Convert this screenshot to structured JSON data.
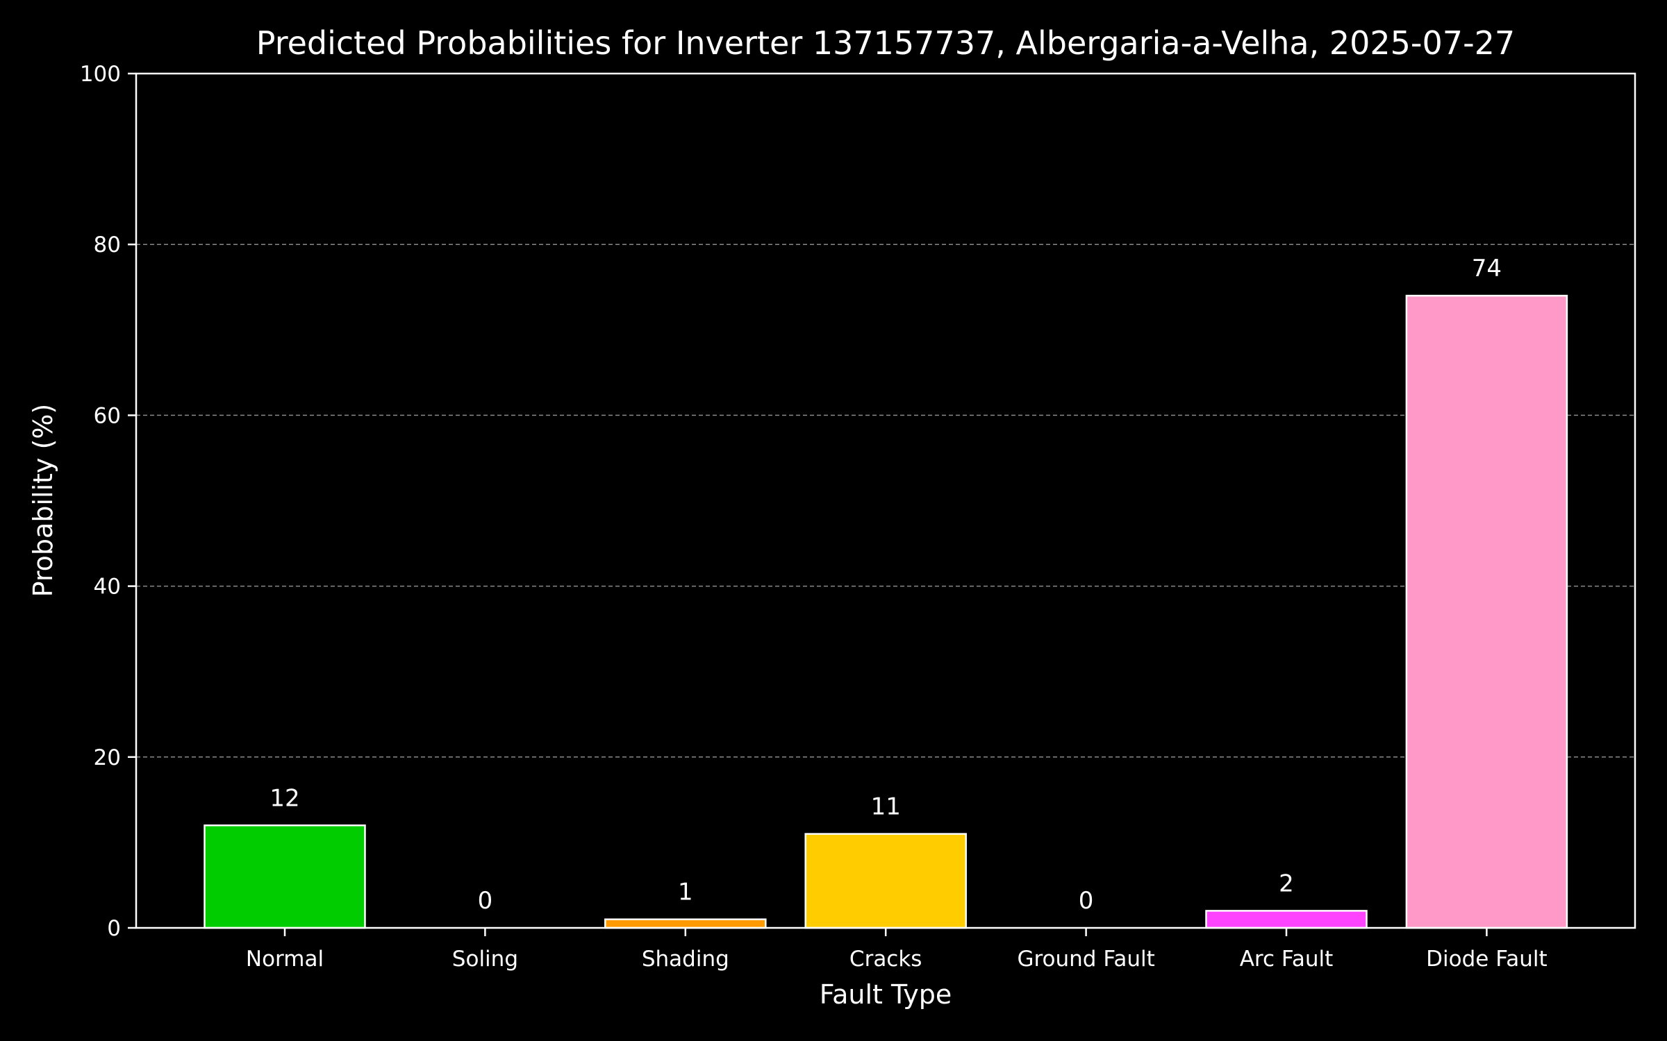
{
  "chart_data": {
    "type": "bar",
    "title": "Predicted Probabilities for Inverter 137157737, Albergaria-a-Velha, 2025-07-27",
    "xlabel": "Fault Type",
    "ylabel": "Probability (%)",
    "categories": [
      "Normal",
      "Soling",
      "Shading",
      "Cracks",
      "Ground Fault",
      "Arc Fault",
      "Diode Fault"
    ],
    "values": [
      12,
      0,
      1,
      11,
      0,
      2,
      74
    ],
    "value_labels": [
      "12",
      "0",
      "1",
      "11",
      "0",
      "2",
      "74"
    ],
    "colors": [
      "#00cc00",
      "#ff3333",
      "#ff9900",
      "#ffcc00",
      "#9933ff",
      "#ff44ff",
      "#ff99c8"
    ],
    "ylim": [
      0,
      100
    ],
    "yticks": [
      0,
      20,
      40,
      60,
      80,
      100
    ],
    "ytick_labels": [
      "0",
      "20",
      "40",
      "60",
      "80",
      "100"
    ],
    "grid": "horizontal dashed",
    "background": "#000000",
    "foreground": "#ffffff"
  }
}
